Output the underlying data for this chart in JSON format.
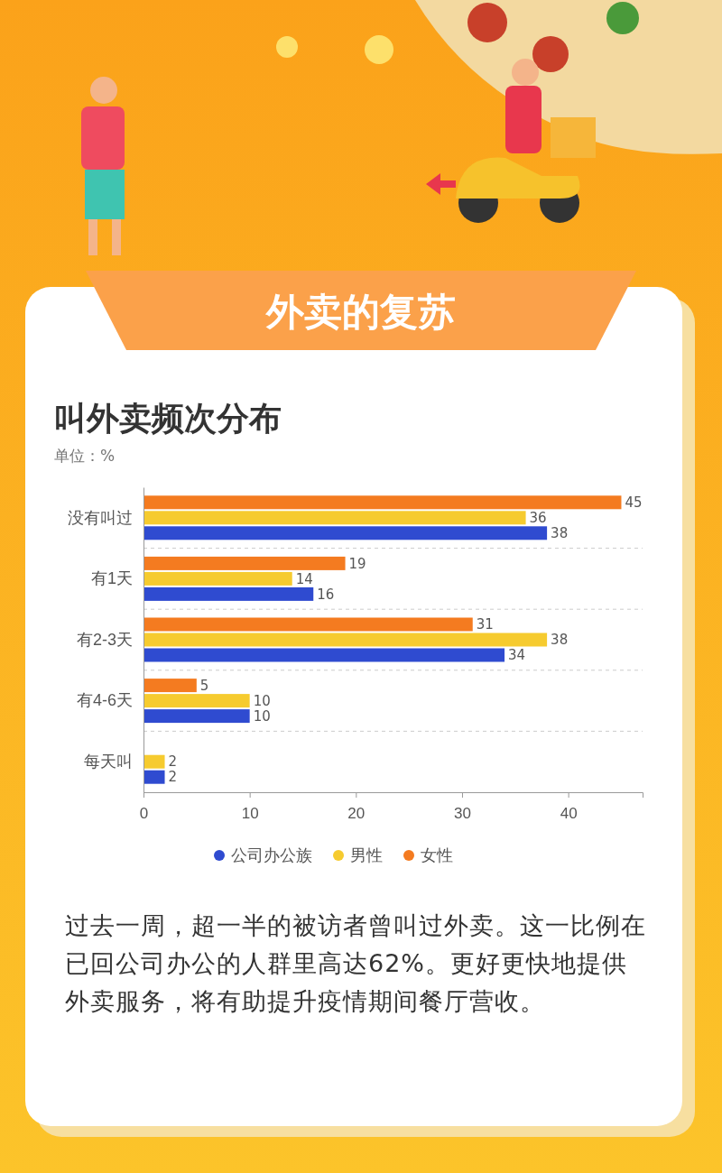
{
  "chart_data": {
    "type": "bar",
    "orientation": "horizontal",
    "title": "叫外卖频次分布",
    "subtitle": "单位：%",
    "annotations": [
      "外卖的复苏",
      "过去一周，超一半的被访者曾叫过外卖。这一比例在已回公司办公的人群里高达62%。更好更快地提供外卖服务，将有助提升疫情期间餐厅营收。"
    ],
    "categories": [
      "没有叫过",
      "有1天",
      "有2-3天",
      "有4-6天",
      "每天叫"
    ],
    "series": [
      {
        "name": "公司办公族",
        "color": "#2f4bd0",
        "values": [
          38,
          16,
          34,
          10,
          2
        ]
      },
      {
        "name": "男性",
        "color": "#f6cb2f",
        "values": [
          36,
          14,
          38,
          10,
          2
        ]
      },
      {
        "name": "女性",
        "color": "#f47b20",
        "values": [
          45,
          19,
          31,
          5,
          null
        ]
      }
    ],
    "xlim": [
      0,
      47
    ],
    "xticks": [
      0,
      10,
      20,
      30,
      40
    ],
    "grid": "y",
    "legend": "bottom",
    "data_labels": true
  }
}
